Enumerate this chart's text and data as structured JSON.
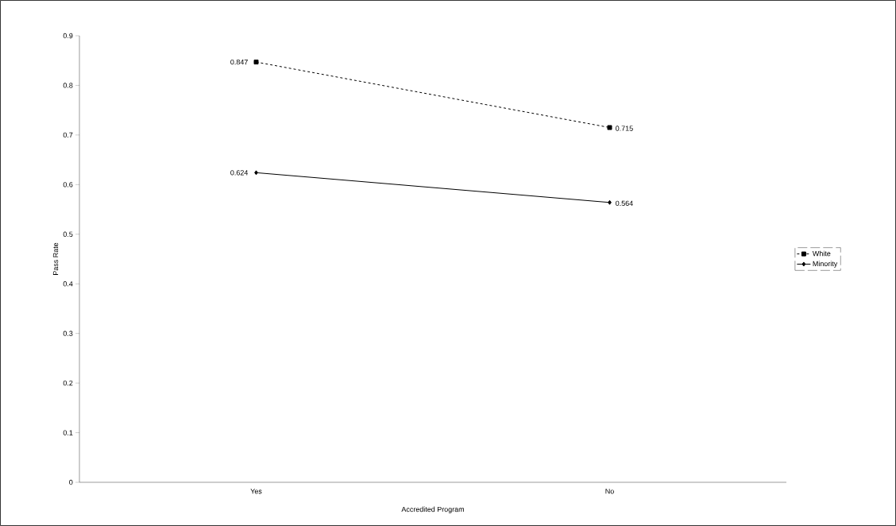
{
  "chart_data": {
    "type": "line",
    "xlabel": "Accredited Program",
    "ylabel": "Pass Rate",
    "categories": [
      "Yes",
      "No"
    ],
    "series": [
      {
        "name": "White",
        "color": "#000000",
        "marker": "square",
        "line_style": "dashed",
        "values": [
          0.847,
          0.715
        ]
      },
      {
        "name": "Minority",
        "color": "#000000",
        "marker": "diamond",
        "line_style": "solid",
        "values": [
          0.624,
          0.564
        ]
      }
    ],
    "ylim": [
      0,
      0.9
    ],
    "yticks": [
      0,
      0.1,
      0.2,
      0.3,
      0.4,
      0.5,
      0.6,
      0.7,
      0.8,
      0.9
    ],
    "data_labels": true,
    "grid": false,
    "legend": "right"
  }
}
